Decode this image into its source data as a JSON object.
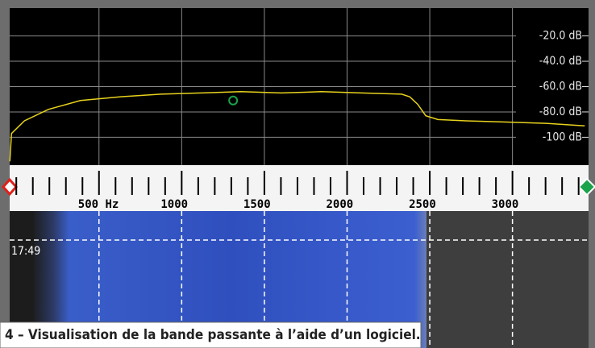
{
  "chart_data": {
    "type": "line",
    "x": [
      -39,
      -29,
      49,
      194,
      388,
      631,
      874,
      1117,
      1359,
      1602,
      1845,
      2087,
      2330,
      2379,
      2427,
      2476,
      2549,
      2718,
      2961,
      3204,
      3437
    ],
    "series": [
      {
        "color": "#e8d21c",
        "values": [
          -119,
          -97,
          -87,
          -78,
          -71,
          -68,
          -66,
          -65,
          -64,
          -65,
          -64,
          -65,
          -66,
          -68,
          -74,
          -83,
          -86,
          -87,
          -88,
          -89,
          -91
        ]
      }
    ],
    "marker": {
      "x": 1311,
      "y": -71,
      "color": "#1aa34a"
    },
    "xlim": [
      -40,
      3460
    ],
    "xticks": [
      {
        "value": 500,
        "label": "500 Hz"
      },
      1000,
      1500,
      2000,
      2500,
      3000
    ],
    "ylim": [
      -122,
      2
    ],
    "yticks": [
      {
        "value": -20,
        "label": "-20.0 dB"
      },
      {
        "value": -40,
        "label": "-40.0 dB"
      },
      {
        "value": -60,
        "label": "-60.0 dB"
      },
      {
        "value": -80,
        "label": "-80.0 dB"
      },
      {
        "value": -100,
        "label": "-100 dB"
      }
    ],
    "grid": true,
    "timestamp": "17:49",
    "caption": "4 – Visualisation de la bande passante à l’aide d’un logiciel."
  }
}
